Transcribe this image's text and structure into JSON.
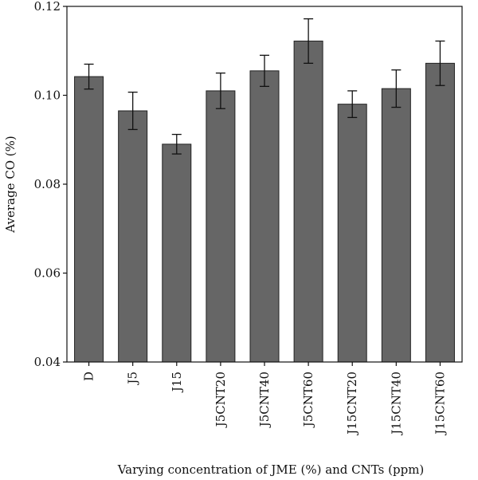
{
  "chart_data": {
    "type": "bar",
    "xlabel": "Varying concentration of JME (%) and CNTs (ppm)",
    "ylabel": "Average CO (%)",
    "ylim": [
      0.04,
      0.12
    ],
    "yticks": [
      "0.04",
      "0.06",
      "0.08",
      "0.10",
      "0.12"
    ],
    "grid": false,
    "bar_color": "#666666",
    "categories": [
      "D",
      "J5",
      "J15",
      "J5CNT20",
      "J5CNT40",
      "J5CNT60",
      "J15CNT20",
      "J15CNT40",
      "J15CNT60"
    ],
    "values": [
      0.1042,
      0.0965,
      0.089,
      0.101,
      0.1055,
      0.1122,
      0.098,
      0.1015,
      0.1072
    ],
    "errors": [
      0.0028,
      0.0042,
      0.0022,
      0.004,
      0.0035,
      0.005,
      0.003,
      0.0042,
      0.005
    ]
  }
}
